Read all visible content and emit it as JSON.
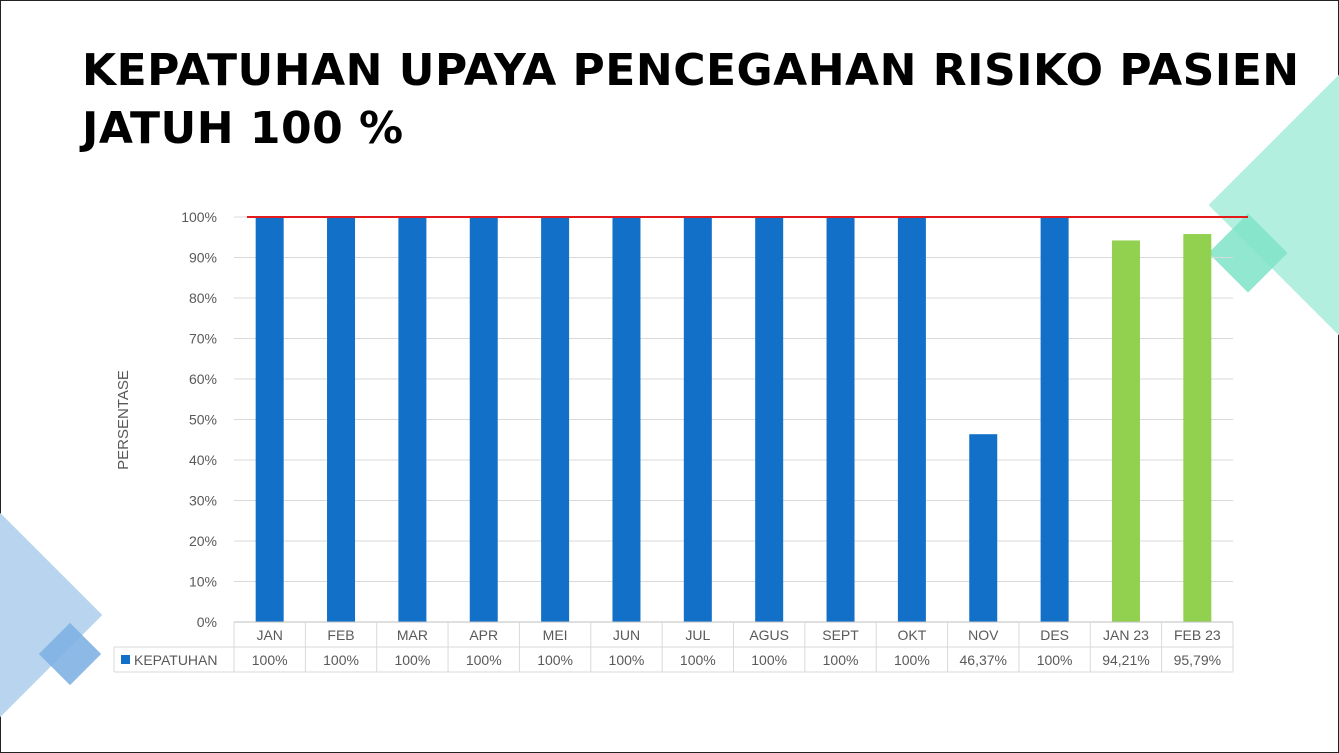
{
  "slide": {
    "title": "KEPATUHAN UPAYA PENCEGAHAN RISIKO PASIEN JATUH 100 %"
  },
  "chart_data": {
    "type": "bar",
    "title": "",
    "ylabel": "PERSENTASE",
    "xlabel": "",
    "ylim": [
      0,
      100
    ],
    "yticks": [
      "0%",
      "10%",
      "20%",
      "30%",
      "40%",
      "50%",
      "60%",
      "70%",
      "80%",
      "90%",
      "100%"
    ],
    "target_line": 100,
    "target_color": "#e31a1c",
    "grid": "horizontal",
    "legend": "data-table-left",
    "categories": [
      "JAN",
      "FEB",
      "MAR",
      "APR",
      "MEI",
      "JUN",
      "JUL",
      "AGUS",
      "SEPT",
      "OKT",
      "NOV",
      "DES",
      "JAN 23",
      "FEB 23"
    ],
    "series": [
      {
        "name": "KEPATUHAN",
        "values": [
          100,
          100,
          100,
          100,
          100,
          100,
          100,
          100,
          100,
          100,
          46.37,
          100,
          94.21,
          95.79
        ],
        "labels": [
          "100%",
          "100%",
          "100%",
          "100%",
          "100%",
          "100%",
          "100%",
          "100%",
          "100%",
          "100%",
          "46,37%",
          "100%",
          "94,21%",
          "95,79%"
        ],
        "colors": [
          "#1370c8",
          "#1370c8",
          "#1370c8",
          "#1370c8",
          "#1370c8",
          "#1370c8",
          "#1370c8",
          "#1370c8",
          "#1370c8",
          "#1370c8",
          "#1370c8",
          "#1370c8",
          "#92d050",
          "#92d050"
        ]
      }
    ]
  }
}
